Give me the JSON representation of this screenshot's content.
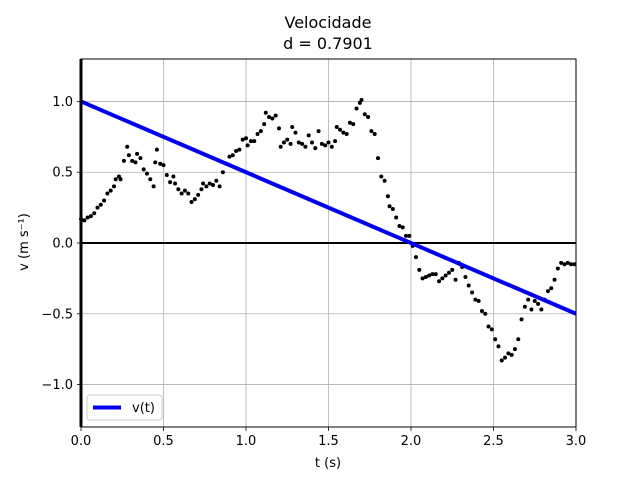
{
  "chart_data": {
    "type": "line",
    "title": "Velocidade",
    "subtitle": "d = 0.7901",
    "xlabel": "t (s)",
    "ylabel": "v (m s⁻¹)",
    "xlim": [
      0.0,
      3.0
    ],
    "ylim": [
      -1.3,
      1.3
    ],
    "xticks": [
      0.0,
      0.5,
      1.0,
      1.5,
      2.0,
      2.5,
      3.0
    ],
    "xtick_labels": [
      "0.0",
      "0.5",
      "1.0",
      "1.5",
      "2.0",
      "2.5",
      "3.0"
    ],
    "yticks": [
      -1.0,
      -0.5,
      0.0,
      0.5,
      1.0
    ],
    "ytick_labels": [
      "−1.0",
      "−0.5",
      "0.0",
      "0.5",
      "1.0"
    ],
    "grid": true,
    "zero_line": true,
    "legend": {
      "placement": "bottom-left",
      "entries": [
        "v(t)"
      ]
    },
    "series": [
      {
        "name": "v(t)",
        "kind": "line",
        "color": "#0000ee",
        "x": [
          0.0,
          3.0
        ],
        "y": [
          1.0,
          -0.5
        ]
      },
      {
        "kind": "scatter",
        "color": "#000000",
        "points": [
          [
            0.0,
            0.17
          ],
          [
            0.02,
            0.16
          ],
          [
            0.04,
            0.18
          ],
          [
            0.06,
            0.19
          ],
          [
            0.08,
            0.21
          ],
          [
            0.1,
            0.25
          ],
          [
            0.12,
            0.27
          ],
          [
            0.14,
            0.3
          ],
          [
            0.16,
            0.35
          ],
          [
            0.18,
            0.37
          ],
          [
            0.2,
            0.4
          ],
          [
            0.21,
            0.45
          ],
          [
            0.23,
            0.47
          ],
          [
            0.24,
            0.45
          ],
          [
            0.26,
            0.58
          ],
          [
            0.28,
            0.68
          ],
          [
            0.29,
            0.62
          ],
          [
            0.31,
            0.58
          ],
          [
            0.33,
            0.57
          ],
          [
            0.34,
            0.63
          ],
          [
            0.36,
            0.6
          ],
          [
            0.38,
            0.52
          ],
          [
            0.4,
            0.49
          ],
          [
            0.42,
            0.45
          ],
          [
            0.44,
            0.4
          ],
          [
            0.45,
            0.57
          ],
          [
            0.46,
            0.66
          ],
          [
            0.48,
            0.56
          ],
          [
            0.5,
            0.55
          ],
          [
            0.52,
            0.48
          ],
          [
            0.54,
            0.43
          ],
          [
            0.56,
            0.47
          ],
          [
            0.57,
            0.42
          ],
          [
            0.59,
            0.38
          ],
          [
            0.61,
            0.35
          ],
          [
            0.63,
            0.37
          ],
          [
            0.65,
            0.35
          ],
          [
            0.67,
            0.29
          ],
          [
            0.69,
            0.31
          ],
          [
            0.71,
            0.34
          ],
          [
            0.73,
            0.38
          ],
          [
            0.74,
            0.42
          ],
          [
            0.76,
            0.4
          ],
          [
            0.78,
            0.42
          ],
          [
            0.8,
            0.41
          ],
          [
            0.82,
            0.44
          ],
          [
            0.84,
            0.4
          ],
          [
            0.86,
            0.5
          ],
          [
            0.88,
            0.56
          ],
          [
            0.9,
            0.61
          ],
          [
            0.92,
            0.62
          ],
          [
            0.94,
            0.65
          ],
          [
            0.96,
            0.66
          ],
          [
            0.98,
            0.73
          ],
          [
            1.0,
            0.74
          ],
          [
            1.01,
            0.69
          ],
          [
            1.03,
            0.72
          ],
          [
            1.05,
            0.72
          ],
          [
            1.07,
            0.77
          ],
          [
            1.09,
            0.79
          ],
          [
            1.11,
            0.84
          ],
          [
            1.12,
            0.92
          ],
          [
            1.14,
            0.89
          ],
          [
            1.16,
            0.88
          ],
          [
            1.18,
            0.9
          ],
          [
            1.2,
            0.81
          ],
          [
            1.21,
            0.68
          ],
          [
            1.23,
            0.71
          ],
          [
            1.25,
            0.73
          ],
          [
            1.27,
            0.7
          ],
          [
            1.28,
            0.82
          ],
          [
            1.3,
            0.78
          ],
          [
            1.32,
            0.71
          ],
          [
            1.34,
            0.7
          ],
          [
            1.36,
            0.68
          ],
          [
            1.38,
            0.76
          ],
          [
            1.4,
            0.71
          ],
          [
            1.42,
            0.67
          ],
          [
            1.44,
            0.79
          ],
          [
            1.46,
            0.7
          ],
          [
            1.48,
            0.69
          ],
          [
            1.5,
            0.71
          ],
          [
            1.52,
            0.68
          ],
          [
            1.54,
            0.72
          ],
          [
            1.55,
            0.82
          ],
          [
            1.57,
            0.8
          ],
          [
            1.59,
            0.78
          ],
          [
            1.61,
            0.77
          ],
          [
            1.63,
            0.85
          ],
          [
            1.65,
            0.84
          ],
          [
            1.67,
            0.95
          ],
          [
            1.69,
            0.99
          ],
          [
            1.7,
            1.01
          ],
          [
            1.72,
            0.91
          ],
          [
            1.74,
            0.89
          ],
          [
            1.76,
            0.79
          ],
          [
            1.78,
            0.77
          ],
          [
            1.8,
            0.6
          ],
          [
            1.82,
            0.47
          ],
          [
            1.84,
            0.44
          ],
          [
            1.86,
            0.33
          ],
          [
            1.87,
            0.26
          ],
          [
            1.89,
            0.24
          ],
          [
            1.91,
            0.18
          ],
          [
            1.93,
            0.12
          ],
          [
            1.95,
            0.11
          ],
          [
            1.97,
            0.05
          ],
          [
            1.99,
            0.05
          ],
          [
            2.01,
            -0.02
          ],
          [
            2.03,
            -0.1
          ],
          [
            2.05,
            -0.19
          ],
          [
            2.07,
            -0.25
          ],
          [
            2.09,
            -0.24
          ],
          [
            2.11,
            -0.23
          ],
          [
            2.13,
            -0.22
          ],
          [
            2.15,
            -0.22
          ],
          [
            2.17,
            -0.27
          ],
          [
            2.19,
            -0.25
          ],
          [
            2.21,
            -0.23
          ],
          [
            2.23,
            -0.21
          ],
          [
            2.25,
            -0.19
          ],
          [
            2.27,
            -0.26
          ],
          [
            2.29,
            -0.14
          ],
          [
            2.31,
            -0.17
          ],
          [
            2.33,
            -0.24
          ],
          [
            2.35,
            -0.3
          ],
          [
            2.37,
            -0.35
          ],
          [
            2.39,
            -0.4
          ],
          [
            2.41,
            -0.41
          ],
          [
            2.43,
            -0.48
          ],
          [
            2.45,
            -0.5
          ],
          [
            2.47,
            -0.59
          ],
          [
            2.49,
            -0.61
          ],
          [
            2.51,
            -0.68
          ],
          [
            2.53,
            -0.73
          ],
          [
            2.55,
            -0.83
          ],
          [
            2.57,
            -0.81
          ],
          [
            2.59,
            -0.78
          ],
          [
            2.61,
            -0.79
          ],
          [
            2.63,
            -0.75
          ],
          [
            2.65,
            -0.68
          ],
          [
            2.67,
            -0.54
          ],
          [
            2.69,
            -0.45
          ],
          [
            2.71,
            -0.4
          ],
          [
            2.73,
            -0.47
          ],
          [
            2.75,
            -0.41
          ],
          [
            2.77,
            -0.43
          ],
          [
            2.79,
            -0.47
          ],
          [
            2.81,
            -0.4
          ],
          [
            2.83,
            -0.34
          ],
          [
            2.85,
            -0.32
          ],
          [
            2.87,
            -0.26
          ],
          [
            2.89,
            -0.18
          ],
          [
            2.91,
            -0.14
          ],
          [
            2.93,
            -0.15
          ],
          [
            2.95,
            -0.14
          ],
          [
            2.97,
            -0.15
          ],
          [
            2.99,
            -0.15
          ]
        ]
      }
    ]
  }
}
